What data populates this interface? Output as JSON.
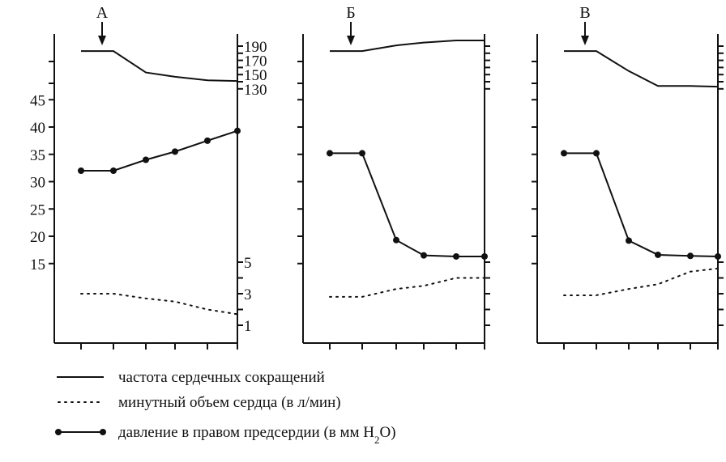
{
  "chart_data": {
    "type": "line",
    "y_left_ticks": [
      "45",
      "40",
      "35",
      "30",
      "25",
      "20",
      "15"
    ],
    "y_right_top_ticks": [
      "190",
      "170",
      "150",
      "130"
    ],
    "y_right_bottom_ticks": [
      "5",
      "3",
      "1"
    ],
    "legend": [
      {
        "key": "hr",
        "label": "частота сердечных сокращений",
        "style": "solid"
      },
      {
        "key": "co",
        "label": "минутный объем сердца  (в л/мин)",
        "style": "dotted"
      },
      {
        "key": "rap",
        "label_main": "давление  в правом  предсердии (в мм H",
        "label_sub": "2",
        "label_end": "O)",
        "style": "solid-dots"
      }
    ],
    "panels": [
      {
        "label": "А",
        "x": [
          0,
          1,
          2,
          3,
          4,
          5
        ],
        "heart_rate": [
          183,
          183,
          153,
          147,
          142,
          141
        ],
        "right_atrial_pressure": [
          32,
          32,
          34,
          35.5,
          37.5,
          39.3
        ],
        "cardio_output": [
          3.0,
          3.0,
          2.7,
          2.5,
          2.0,
          1.7
        ]
      },
      {
        "label": "Б",
        "x": [
          0,
          1,
          2,
          3,
          4,
          5
        ],
        "heart_rate": [
          183,
          183,
          191,
          195,
          198,
          198
        ],
        "right_atrial_pressure": [
          35.2,
          35.2,
          19.3,
          16.5,
          16.3,
          16.3
        ],
        "cardio_output": [
          2.8,
          2.8,
          3.3,
          3.5,
          4.0,
          4.0
        ]
      },
      {
        "label": "В",
        "x": [
          0,
          1,
          2,
          3,
          4,
          5
        ],
        "heart_rate": [
          183,
          183,
          155,
          134,
          134,
          133
        ],
        "right_atrial_pressure": [
          35.2,
          35.2,
          19.2,
          16.6,
          16.4,
          16.3
        ],
        "cardio_output": [
          2.9,
          2.9,
          3.3,
          3.6,
          4.4,
          4.6
        ]
      }
    ]
  }
}
